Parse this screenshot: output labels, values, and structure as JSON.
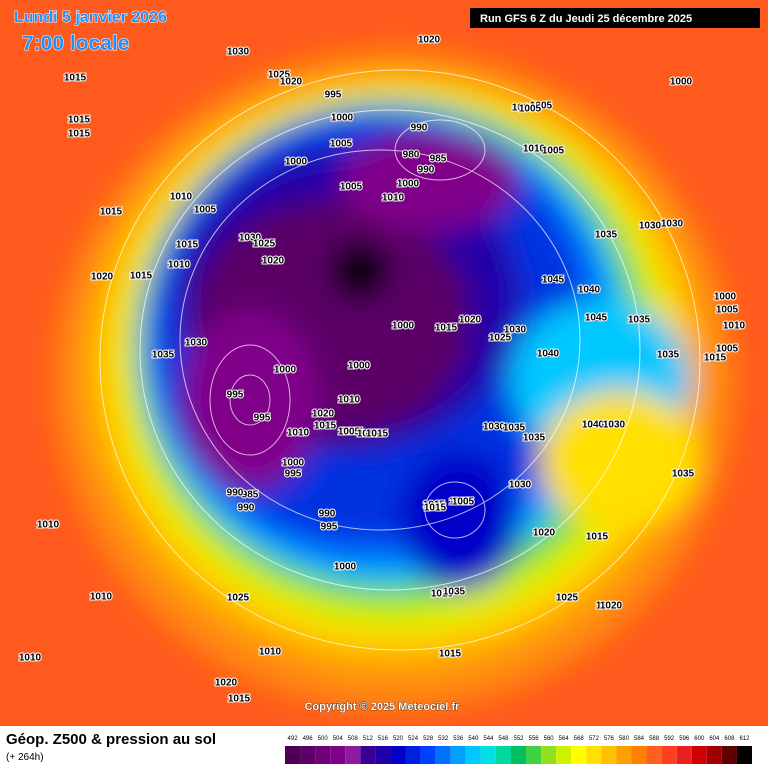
{
  "header": {
    "date": "Lundi 5 janvier 2026",
    "time": "7:00 locale",
    "run": "Run GFS 6 Z du Jeudi 25 décembre 2025"
  },
  "footer": {
    "title": "Géop. Z500 & pression au sol",
    "subtitle": "(+ 264h)",
    "copyright": "Copyright © 2025 Meteociel.fr"
  },
  "colorbar": {
    "ticks": [
      492,
      496,
      500,
      504,
      508,
      512,
      516,
      520,
      524,
      528,
      532,
      536,
      540,
      544,
      548,
      552,
      556,
      560,
      564,
      568,
      572,
      576,
      580,
      584,
      588,
      592,
      596,
      600,
      604,
      608,
      612
    ],
    "colors": [
      "#4b0055",
      "#5a0066",
      "#6e0078",
      "#80008a",
      "#8c1a9c",
      "#3a0096",
      "#2000a8",
      "#0000c8",
      "#0020e0",
      "#0040ff",
      "#0070ff",
      "#00a0ff",
      "#00c8ff",
      "#00e0e0",
      "#00d8a0",
      "#00c060",
      "#40d040",
      "#90e020",
      "#d0f000",
      "#ffff00",
      "#ffe000",
      "#ffc000",
      "#ffa000",
      "#ff8000",
      "#ff6020",
      "#ff4020",
      "#e82020",
      "#d00000",
      "#a00000",
      "#600000",
      "#000000"
    ]
  },
  "pressure_labels": [
    1030,
    1020,
    1025,
    1020,
    1015,
    1015,
    1015,
    995,
    1000,
    1005,
    990,
    980,
    985,
    990,
    1000,
    1010,
    1010,
    1005,
    1010,
    1005,
    1000,
    1005,
    1015,
    1015,
    1010,
    1030,
    1025,
    1020,
    1020,
    1015,
    1035,
    1045,
    1040,
    1045,
    1035,
    1035,
    1030,
    1030,
    1000,
    1005,
    1010,
    1005,
    1015,
    1035,
    1030,
    1000,
    1000,
    1015,
    1020,
    1025,
    1030,
    1040,
    995,
    995,
    1000,
    1010,
    1020,
    1015,
    1010,
    1005,
    1000,
    995,
    985,
    990,
    990,
    995,
    990,
    1005,
    1015,
    1015,
    1030,
    1035,
    1035,
    1040,
    1030,
    1015,
    1030,
    1025,
    1020,
    1015,
    1005,
    1000,
    1010,
    1010,
    1015,
    1025,
    1020,
    1010,
    1010,
    1015,
    1020,
    1015,
    1025,
    1020,
    1035,
    1000,
    1005,
    1010,
    1005,
    1015,
    1035
  ]
}
